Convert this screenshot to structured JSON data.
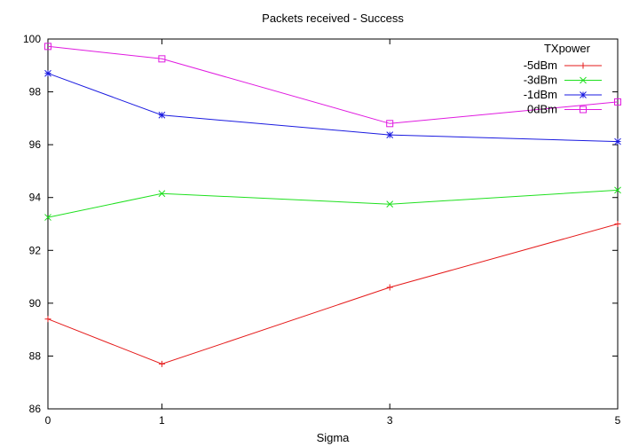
{
  "chart_data": {
    "type": "line",
    "title": "Packets received - Success",
    "xlabel": "Sigma",
    "ylabel": "",
    "categories": [
      "0",
      "1",
      "3",
      "5"
    ],
    "ylim": [
      86,
      100
    ],
    "yticks": [
      86,
      88,
      90,
      92,
      94,
      96,
      98,
      100
    ],
    "grid": false,
    "legend": {
      "title": "TXpower",
      "placement": "top-right"
    },
    "series": [
      {
        "name": "-5dBm",
        "color": "#e51a1a",
        "marker": "plus",
        "values": [
          89.4,
          87.7,
          90.6,
          93.0
        ]
      },
      {
        "name": "-3dBm",
        "color": "#1ee01e",
        "marker": "cross",
        "values": [
          93.25,
          94.15,
          93.75,
          94.28
        ]
      },
      {
        "name": "-1dBm",
        "color": "#1a1ae0",
        "marker": "star",
        "values": [
          98.7,
          97.12,
          96.37,
          96.12
        ]
      },
      {
        "name": "0dBm",
        "color": "#e01ae0",
        "marker": "square",
        "values": [
          99.72,
          99.25,
          96.8,
          97.62
        ]
      }
    ]
  }
}
